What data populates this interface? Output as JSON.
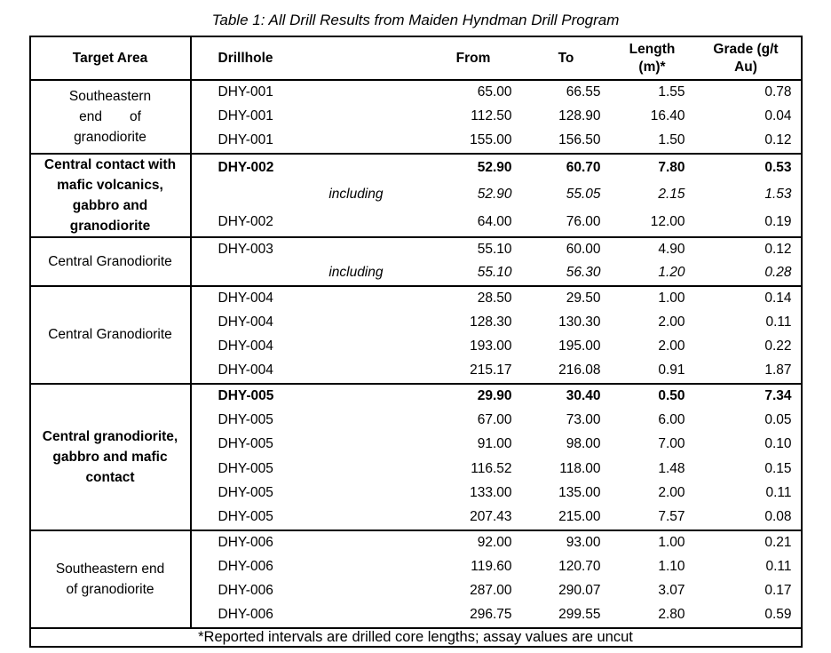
{
  "caption": "Table 1: All Drill Results from Maiden Hyndman Drill Program",
  "colors": {
    "text": "#000000",
    "border": "#000000",
    "background": "#ffffff"
  },
  "columns": [
    "Target Area",
    "Drillhole",
    "From",
    "To",
    "Length\n(m)*",
    "Grade (g/t\nAu)"
  ],
  "footnote": "*Reported intervals are drilled core lengths; assay values are uncut",
  "groups": [
    {
      "target_area": "Southeastern end of granodiorite",
      "target_lines": [
        "Southeastern",
        "end  of",
        "granodiorite"
      ],
      "rows": [
        {
          "drillhole": "DHY-001",
          "from": "65.00",
          "to": "66.55",
          "length": "1.55",
          "grade": "0.78",
          "style": "normal"
        },
        {
          "drillhole": "DHY-001",
          "from": "112.50",
          "to": "128.90",
          "length": "16.40",
          "grade": "0.04",
          "style": "normal"
        },
        {
          "drillhole": "DHY-001",
          "from": "155.00",
          "to": "156.50",
          "length": "1.50",
          "grade": "0.12",
          "style": "normal"
        }
      ]
    },
    {
      "target_area": "Central contact with mafic volcanics, gabbro and granodiorite",
      "target_lines": [
        "Central contact with",
        "mafic volcanics,",
        "gabbro and",
        "granodiorite"
      ],
      "rows": [
        {
          "drillhole": "DHY-002",
          "from": "52.90",
          "to": "60.70",
          "length": "7.80",
          "grade": "0.53",
          "style": "bold"
        },
        {
          "drillhole": "including",
          "from": "52.90",
          "to": "55.05",
          "length": "2.15",
          "grade": "1.53",
          "style": "including"
        },
        {
          "drillhole": "DHY-002",
          "from": "64.00",
          "to": "76.00",
          "length": "12.00",
          "grade": "0.19",
          "style": "normal"
        }
      ]
    },
    {
      "target_area": "Central Granodiorite",
      "target_lines": [
        "Central Granodiorite"
      ],
      "rows": [
        {
          "drillhole": "DHY-003",
          "from": "55.10",
          "to": "60.00",
          "length": "4.90",
          "grade": "0.12",
          "style": "normal"
        },
        {
          "drillhole": "including",
          "from": "55.10",
          "to": "56.30",
          "length": "1.20",
          "grade": "0.28",
          "style": "including"
        }
      ]
    },
    {
      "target_area": "Central Granodiorite",
      "target_lines": [
        "Central Granodiorite"
      ],
      "rows": [
        {
          "drillhole": "DHY-004",
          "from": "28.50",
          "to": "29.50",
          "length": "1.00",
          "grade": "0.14",
          "style": "normal"
        },
        {
          "drillhole": "DHY-004",
          "from": "128.30",
          "to": "130.30",
          "length": "2.00",
          "grade": "0.11",
          "style": "normal"
        },
        {
          "drillhole": "DHY-004",
          "from": "193.00",
          "to": "195.00",
          "length": "2.00",
          "grade": "0.22",
          "style": "normal"
        },
        {
          "drillhole": "DHY-004",
          "from": "215.17",
          "to": "216.08",
          "length": "0.91",
          "grade": "1.87",
          "style": "normal"
        }
      ]
    },
    {
      "target_area": "Central granodiorite, gabbro and mafic contact",
      "target_lines": [
        "Central granodiorite,",
        "gabbro and mafic",
        "contact"
      ],
      "rows": [
        {
          "drillhole": "DHY-005",
          "from": "29.90",
          "to": "30.40",
          "length": "0.50",
          "grade": "7.34",
          "style": "bold"
        },
        {
          "drillhole": "DHY-005",
          "from": "67.00",
          "to": "73.00",
          "length": "6.00",
          "grade": "0.05",
          "style": "normal"
        },
        {
          "drillhole": "DHY-005",
          "from": "91.00",
          "to": "98.00",
          "length": "7.00",
          "grade": "0.10",
          "style": "normal"
        },
        {
          "drillhole": "DHY-005",
          "from": "116.52",
          "to": "118.00",
          "length": "1.48",
          "grade": "0.15",
          "style": "normal"
        },
        {
          "drillhole": "DHY-005",
          "from": "133.00",
          "to": "135.00",
          "length": "2.00",
          "grade": "0.11",
          "style": "normal"
        },
        {
          "drillhole": "DHY-005",
          "from": "207.43",
          "to": "215.00",
          "length": "7.57",
          "grade": "0.08",
          "style": "normal"
        }
      ]
    },
    {
      "target_area": "Southeastern end of granodiorite",
      "target_lines": [
        "Southeastern end",
        "of granodiorite"
      ],
      "rows": [
        {
          "drillhole": "DHY-006",
          "from": "92.00",
          "to": "93.00",
          "length": "1.00",
          "grade": "0.21",
          "style": "normal"
        },
        {
          "drillhole": "DHY-006",
          "from": "119.60",
          "to": "120.70",
          "length": "1.10",
          "grade": "0.11",
          "style": "normal"
        },
        {
          "drillhole": "DHY-006",
          "from": "287.00",
          "to": "290.07",
          "length": "3.07",
          "grade": "0.17",
          "style": "normal"
        },
        {
          "drillhole": "DHY-006",
          "from": "296.75",
          "to": "299.55",
          "length": "2.80",
          "grade": "0.59",
          "style": "normal"
        }
      ]
    }
  ]
}
